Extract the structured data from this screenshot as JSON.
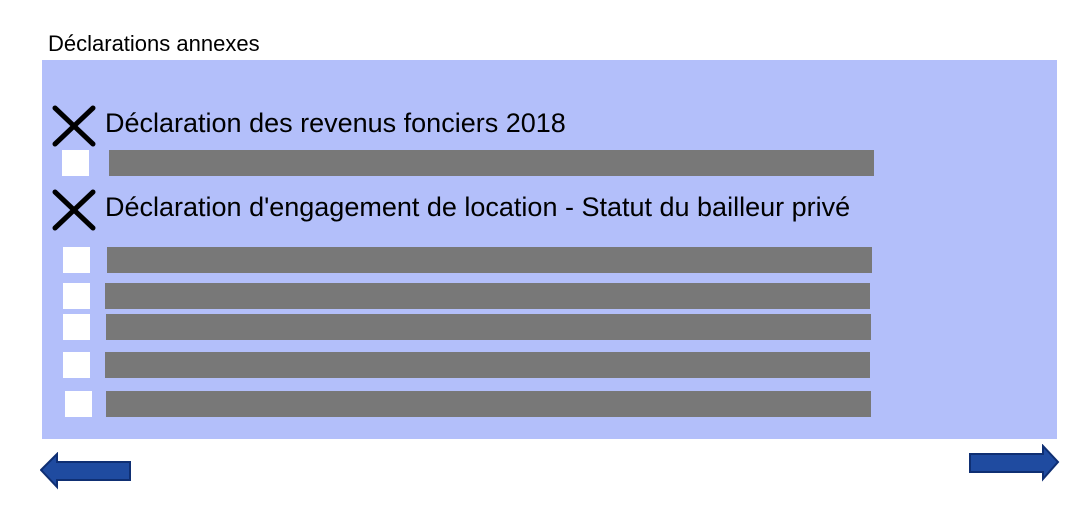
{
  "header": {
    "title": "Déclarations annexes"
  },
  "declarations": {
    "primary_item": {
      "label": "Déclaration des revenus fonciers 2018",
      "checked": true
    },
    "secondary_item": {
      "label": "Déclaration d'engagement de location - Statut du bailleur privé",
      "checked": true
    },
    "redacted_options_group_1": [
      {
        "checked": false
      }
    ],
    "redacted_options_group_2": [
      {
        "checked": false
      },
      {
        "checked": false
      },
      {
        "checked": false
      },
      {
        "checked": false
      },
      {
        "checked": false
      }
    ]
  },
  "navigation": {
    "previous_icon": "arrow-left-icon",
    "next_icon": "arrow-right-icon"
  },
  "colors": {
    "panel_background": "#b3bffa",
    "redacted_bar": "#787878",
    "arrow_fill": "#1f4ba0",
    "arrow_stroke": "#0f2f73"
  }
}
